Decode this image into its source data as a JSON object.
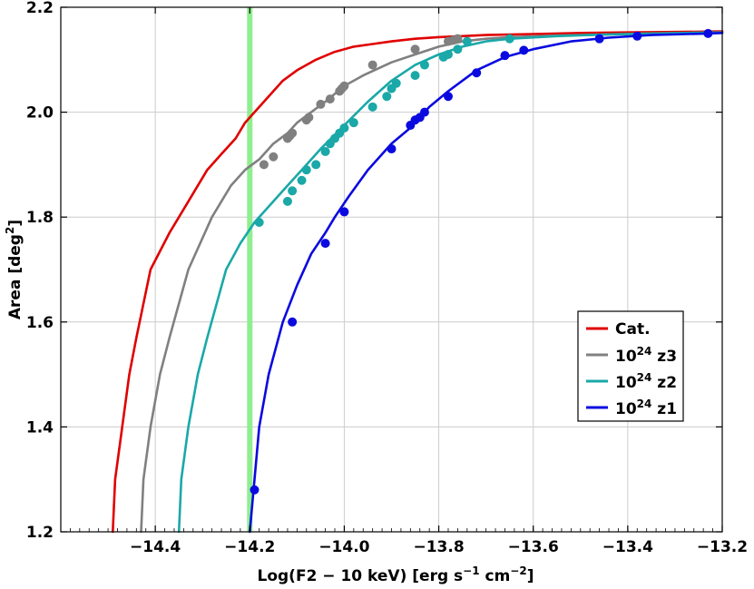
{
  "chart_data": {
    "type": "line",
    "xlabel": {
      "main": "Log(F2 − 10 keV) [erg s",
      "exp1": "−1",
      "mid": " cm",
      "exp2": "−2",
      "end": "]"
    },
    "ylabel": {
      "main": "Area [deg",
      "exp": "2",
      "end": "]"
    },
    "xlim": [
      -14.6,
      -13.2
    ],
    "ylim": [
      1.2,
      2.2
    ],
    "xticks": [
      -14.4,
      -14.2,
      -14.0,
      -13.8,
      -13.6,
      -13.4,
      -13.2
    ],
    "xtick_labels": [
      "−14.4",
      "−14.2",
      "−14.0",
      "−13.8",
      "−13.6",
      "−13.4",
      "−13.2"
    ],
    "yticks": [
      1.2,
      1.4,
      1.6,
      1.8,
      2.0,
      2.2
    ],
    "ytick_labels": [
      "1.2",
      "1.4",
      "1.6",
      "1.8",
      "2.0",
      "2.2"
    ],
    "grid": true,
    "legend_position": "center-right",
    "vertical_line": {
      "x": -14.2,
      "color": "#90ee90"
    },
    "series": [
      {
        "name": "Cat.",
        "color": "#e00000",
        "x": [
          -14.49,
          -14.485,
          -14.47,
          -14.455,
          -14.44,
          -14.41,
          -14.37,
          -14.33,
          -14.29,
          -14.26,
          -14.23,
          -14.21,
          -14.19,
          -14.16,
          -14.13,
          -14.1,
          -14.06,
          -14.02,
          -13.98,
          -13.94,
          -13.9,
          -13.85,
          -13.8,
          -13.75,
          -13.7,
          -13.6,
          -13.5,
          -13.4,
          -13.3,
          -13.2
        ],
        "values": [
          1.2,
          1.3,
          1.4,
          1.5,
          1.57,
          1.7,
          1.77,
          1.83,
          1.89,
          1.92,
          1.95,
          1.98,
          2.0,
          2.03,
          2.06,
          2.08,
          2.1,
          2.115,
          2.125,
          2.13,
          2.135,
          2.14,
          2.143,
          2.145,
          2.147,
          2.149,
          2.151,
          2.152,
          2.153,
          2.154
        ],
        "markers": []
      },
      {
        "name": "10^24 z3",
        "label_base": "10",
        "label_exp": "24",
        "label_suffix": " z3",
        "color": "#808080",
        "x": [
          -14.43,
          -14.425,
          -14.41,
          -14.39,
          -14.37,
          -14.33,
          -14.28,
          -14.24,
          -14.21,
          -14.18,
          -14.15,
          -14.12,
          -14.1,
          -14.07,
          -14.04,
          -14.0,
          -13.96,
          -13.9,
          -13.85,
          -13.8,
          -13.75,
          -13.7,
          -13.65,
          -13.55,
          -13.45,
          -13.35,
          -13.2
        ],
        "values": [
          1.2,
          1.3,
          1.4,
          1.5,
          1.57,
          1.7,
          1.8,
          1.86,
          1.89,
          1.91,
          1.94,
          1.96,
          1.98,
          2.0,
          2.02,
          2.05,
          2.07,
          2.095,
          2.11,
          2.125,
          2.135,
          2.14,
          2.143,
          2.146,
          2.148,
          2.15,
          2.152
        ],
        "markers": [
          [
            -14.17,
            1.9
          ],
          [
            -14.15,
            1.915
          ],
          [
            -14.12,
            1.95
          ],
          [
            -14.115,
            1.955
          ],
          [
            -14.11,
            1.96
          ],
          [
            -14.08,
            1.985
          ],
          [
            -14.075,
            1.99
          ],
          [
            -14.05,
            2.015
          ],
          [
            -14.03,
            2.025
          ],
          [
            -14.01,
            2.04
          ],
          [
            -14.005,
            2.045
          ],
          [
            -14.0,
            2.05
          ],
          [
            -13.94,
            2.09
          ],
          [
            -13.85,
            2.12
          ],
          [
            -13.78,
            2.135
          ],
          [
            -13.77,
            2.137
          ],
          [
            -13.76,
            2.14
          ]
        ]
      },
      {
        "name": "10^24 z2",
        "label_base": "10",
        "label_exp": "24",
        "label_suffix": " z2",
        "color": "#1aa8a8",
        "x": [
          -14.35,
          -14.345,
          -14.33,
          -14.31,
          -14.29,
          -14.25,
          -14.22,
          -14.19,
          -14.16,
          -14.12,
          -14.09,
          -14.05,
          -14.0,
          -13.95,
          -13.9,
          -13.85,
          -13.8,
          -13.75,
          -13.7,
          -13.65,
          -13.55,
          -13.45,
          -13.35,
          -13.2
        ],
        "values": [
          1.2,
          1.3,
          1.4,
          1.5,
          1.57,
          1.7,
          1.75,
          1.79,
          1.82,
          1.86,
          1.89,
          1.93,
          1.975,
          2.02,
          2.06,
          2.09,
          2.11,
          2.125,
          2.135,
          2.14,
          2.145,
          2.148,
          2.15,
          2.152
        ],
        "markers": [
          [
            -14.18,
            1.79
          ],
          [
            -14.12,
            1.83
          ],
          [
            -14.11,
            1.85
          ],
          [
            -14.09,
            1.87
          ],
          [
            -14.08,
            1.89
          ],
          [
            -14.06,
            1.9
          ],
          [
            -14.04,
            1.925
          ],
          [
            -14.03,
            1.94
          ],
          [
            -14.02,
            1.95
          ],
          [
            -14.01,
            1.96
          ],
          [
            -14.0,
            1.97
          ],
          [
            -13.98,
            1.98
          ],
          [
            -13.94,
            2.01
          ],
          [
            -13.91,
            2.03
          ],
          [
            -13.9,
            2.045
          ],
          [
            -13.89,
            2.055
          ],
          [
            -13.85,
            2.07
          ],
          [
            -13.83,
            2.09
          ],
          [
            -13.79,
            2.105
          ],
          [
            -13.78,
            2.11
          ],
          [
            -13.76,
            2.12
          ],
          [
            -13.74,
            2.135
          ],
          [
            -13.65,
            2.14
          ]
        ]
      },
      {
        "name": "10^24 z1",
        "label_base": "10",
        "label_exp": "24",
        "label_suffix": " z1",
        "color": "#0a0ae0",
        "x": [
          -14.2,
          -14.195,
          -14.19,
          -14.18,
          -14.16,
          -14.13,
          -14.1,
          -14.07,
          -14.04,
          -14.02,
          -13.99,
          -13.95,
          -13.9,
          -13.86,
          -13.82,
          -13.78,
          -13.72,
          -13.66,
          -13.6,
          -13.52,
          -13.44,
          -13.35,
          -13.23,
          -13.2
        ],
        "values": [
          1.2,
          1.25,
          1.3,
          1.4,
          1.5,
          1.6,
          1.67,
          1.73,
          1.77,
          1.8,
          1.84,
          1.89,
          1.94,
          1.97,
          2.01,
          2.04,
          2.08,
          2.105,
          2.12,
          2.135,
          2.142,
          2.147,
          2.15,
          2.151
        ],
        "markers": [
          [
            -14.19,
            1.28
          ],
          [
            -14.11,
            1.6
          ],
          [
            -14.04,
            1.75
          ],
          [
            -14.0,
            1.81
          ],
          [
            -13.9,
            1.93
          ],
          [
            -13.86,
            1.975
          ],
          [
            -13.85,
            1.985
          ],
          [
            -13.84,
            1.99
          ],
          [
            -13.83,
            2.0
          ],
          [
            -13.78,
            2.03
          ],
          [
            -13.72,
            2.075
          ],
          [
            -13.66,
            2.108
          ],
          [
            -13.62,
            2.118
          ],
          [
            -13.46,
            2.14
          ],
          [
            -13.38,
            2.145
          ],
          [
            -13.23,
            2.15
          ]
        ]
      }
    ]
  }
}
